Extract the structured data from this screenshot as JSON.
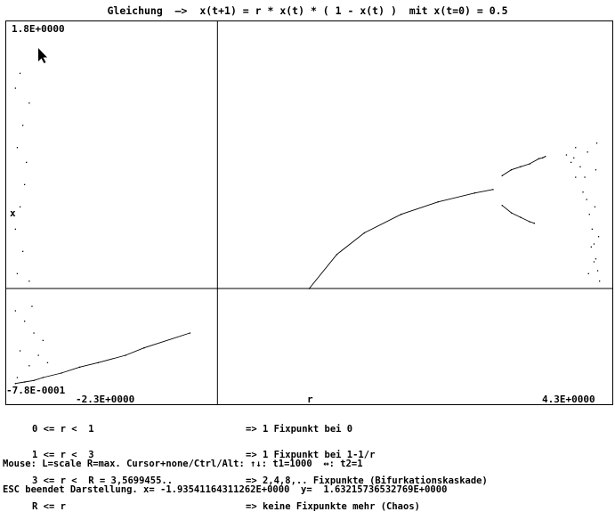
{
  "title": "Gleichung  —>  x(t+1) = r * x(t) * ( 1 - x(t) )  mit x(t=0) = 0.5",
  "axes": {
    "y_max": "1.8E+0000",
    "y_min": "-7.8E-0001",
    "x_min": "-2.3E+0000",
    "x_max": "4.3E+0000",
    "x_label": "r",
    "y_label": "x"
  },
  "legend": [
    {
      "cond": "0 <= r <  1",
      "desc": "=> 1 Fixpunkt bei 0"
    },
    {
      "cond": "1 <= r <  3",
      "desc": "=> 1 Fixpunkt bei 1-1/r"
    },
    {
      "cond": "3 <= r <  R = 3,5699455..",
      "desc": "=> 2,4,8,.. Fixpunkte (Bifurkationskaskade)"
    },
    {
      "cond": "R <= r",
      "desc": "=> keine Fixpunkte mehr (Chaos)"
    }
  ],
  "status": {
    "line1": "Mouse: L=scale R=max. Cursor+none/Ctrl/Alt: ↑↓: t1=1000  ↔: t2=1",
    "line2": "ESC beendet Darstellung. x= -1.93541164311262E+0000  y=  1.63215736532769E+0000"
  },
  "chart_data": {
    "type": "scatter",
    "title": "Gleichung  —>  x(t+1) = r * x(t) * ( 1 - x(t) )  mit x(t=0) = 0.5",
    "xlabel": "r",
    "ylabel": "x",
    "xlim": [
      -2.3,
      4.3
    ],
    "ylim": [
      -0.78,
      1.8
    ],
    "grid": false,
    "series": [
      {
        "points": [
          [
            -0.3,
            -0.3
          ],
          [
            -0.8,
            -0.4
          ],
          [
            -1.0,
            -0.45
          ],
          [
            -1.3,
            -0.5
          ],
          [
            -1.5,
            -0.53
          ],
          [
            -1.7,
            -0.57
          ],
          [
            -1.9,
            -0.6
          ],
          [
            -2.0,
            -0.62
          ],
          [
            -2.1,
            -0.63
          ],
          [
            -2.2,
            -0.64
          ]
        ]
      },
      {
        "points": [
          [
            1.0,
            0.0
          ],
          [
            1.3,
            0.23
          ],
          [
            1.6,
            0.375
          ],
          [
            2.0,
            0.5
          ],
          [
            2.4,
            0.583
          ],
          [
            2.8,
            0.643
          ],
          [
            3.0,
            0.667
          ]
        ]
      },
      {
        "points": [
          [
            3.1,
            0.76
          ],
          [
            3.2,
            0.8
          ],
          [
            3.3,
            0.82
          ],
          [
            3.4,
            0.84
          ],
          [
            3.5,
            0.875
          ],
          [
            3.54,
            0.88
          ],
          [
            3.57,
            0.89
          ]
        ]
      },
      {
        "points": [
          [
            3.1,
            0.56
          ],
          [
            3.2,
            0.51
          ],
          [
            3.3,
            0.48
          ],
          [
            3.4,
            0.45
          ],
          [
            3.45,
            0.44
          ]
        ]
      },
      {
        "points": [
          [
            -2.15,
            1.45
          ],
          [
            -2.2,
            1.35
          ],
          [
            -2.05,
            1.25
          ],
          [
            -2.12,
            1.1
          ],
          [
            -2.18,
            0.95
          ],
          [
            -2.08,
            0.85
          ],
          [
            -2.1,
            0.7
          ],
          [
            -2.15,
            0.55
          ],
          [
            -2.2,
            0.4
          ],
          [
            -2.12,
            0.25
          ],
          [
            -2.18,
            0.1
          ],
          [
            -2.05,
            0.05
          ],
          [
            -2.2,
            -0.15
          ],
          [
            -2.1,
            -0.22
          ],
          [
            -2.0,
            -0.3
          ],
          [
            -1.9,
            -0.35
          ],
          [
            -2.15,
            -0.42
          ],
          [
            -1.95,
            -0.45
          ],
          [
            -2.05,
            -0.52
          ],
          [
            -2.18,
            -0.6
          ],
          [
            -1.85,
            -0.5
          ],
          [
            -2.02,
            -0.12
          ]
        ]
      },
      {
        "points": [
          [
            3.8,
            0.9
          ],
          [
            3.85,
            0.85
          ],
          [
            3.9,
            0.95
          ],
          [
            3.95,
            0.82
          ],
          [
            4.0,
            0.75
          ],
          [
            4.02,
            0.6
          ],
          [
            4.05,
            0.5
          ],
          [
            4.08,
            0.4
          ],
          [
            4.1,
            0.3
          ],
          [
            4.12,
            0.2
          ],
          [
            4.14,
            0.12
          ],
          [
            4.16,
            0.05
          ],
          [
            3.9,
            0.75
          ],
          [
            3.98,
            0.65
          ],
          [
            4.03,
            0.92
          ],
          [
            4.07,
            0.28
          ],
          [
            4.11,
            0.55
          ],
          [
            3.88,
            0.88
          ],
          [
            4.13,
            0.98
          ],
          [
            4.15,
            0.35
          ],
          [
            4.1,
            0.18
          ],
          [
            4.04,
            0.1
          ],
          [
            4.12,
            0.8
          ]
        ]
      }
    ]
  }
}
